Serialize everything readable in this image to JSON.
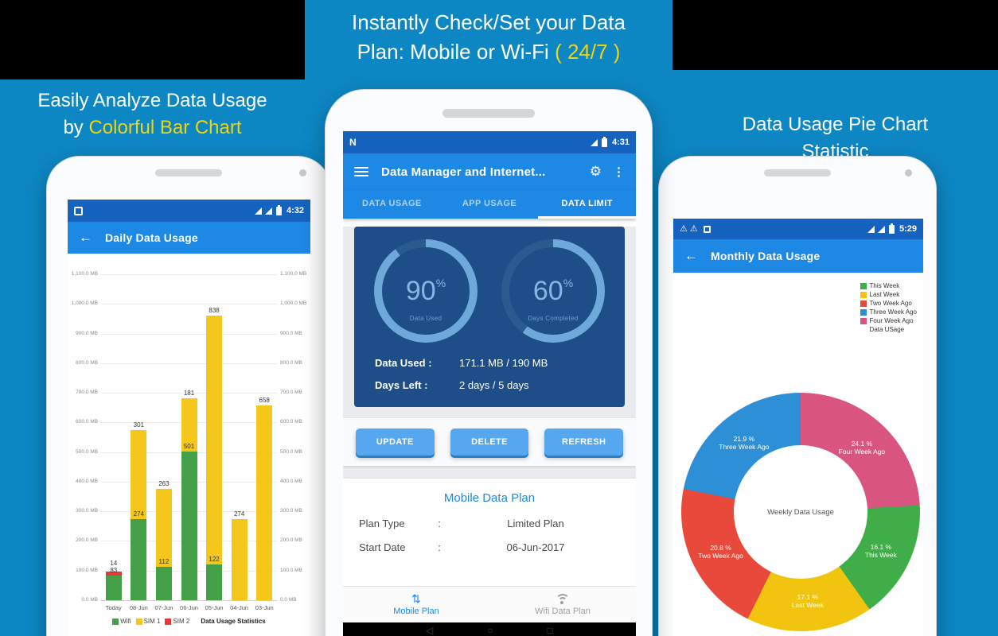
{
  "theme": {
    "background": "#0d87c4",
    "highlight_yellow": "#efd411",
    "appbar_blue": "#1e88e5",
    "statusbar_blue": "#1563bf",
    "card_blue": "#1d4e87",
    "button_blue": "#55a7f0"
  },
  "icons": {
    "back": "←",
    "gear": "⚙",
    "more": "⋮",
    "swap": "⇅",
    "warning": "⚠",
    "nav_back": "◁",
    "nav_home": "○",
    "nav_recent": "□"
  },
  "header": {
    "center_line1": "Instantly Check/Set your Data",
    "center_line2_prefix": "Plan: Mobile or Wi-Fi ",
    "center_line2_highlight": "( 24/7 )",
    "left_line1": "Easily Analyze Data Usage",
    "left_line2_prefix": "by ",
    "left_line2_highlight": "Colorful Bar Chart",
    "right_line1": "Data Usage Pie Chart",
    "right_line2": "Statistic"
  },
  "left_phone": {
    "status_time": "4:32",
    "appbar_title": "Daily Data Usage"
  },
  "middle_phone": {
    "status_icon": "N",
    "status_time": "4:31",
    "appbar_title": "Data Manager and Internet...",
    "tabs": [
      {
        "label": "DATA USAGE",
        "active": false
      },
      {
        "label": "APP USAGE",
        "active": false
      },
      {
        "label": "DATA LIMIT",
        "active": true
      }
    ],
    "stats": [
      {
        "label": "Data Used :",
        "value": "171.1 MB / 190 MB"
      },
      {
        "label": "Days Left :",
        "value": "2 days / 5 days"
      }
    ],
    "buttons": [
      "UPDATE",
      "DELETE",
      "REFRESH"
    ],
    "plan_card": {
      "title": "Mobile Data Plan",
      "colon": ":",
      "rows": [
        {
          "label": "Plan Type",
          "value": "Limited Plan"
        },
        {
          "label": "Start Date",
          "value": "06-Jun-2017"
        }
      ]
    },
    "bottom_nav": [
      {
        "label": "Mobile Plan",
        "icon": "swap",
        "active": true
      },
      {
        "label": "Wifi Data Plan",
        "icon": "wifi",
        "active": false
      }
    ]
  },
  "right_phone": {
    "status_time": "5:29",
    "appbar_title": "Monthly Data Usage"
  },
  "chart_data": [
    {
      "id": "daily-bar",
      "type": "bar",
      "stacked": true,
      "title": "Daily Data Usage",
      "footer": "Data Usage Statistics",
      "categories": [
        "Today",
        "08-Jun",
        "07-Jun",
        "06-Jun",
        "05-Jun",
        "04-Jun",
        "03-Jun"
      ],
      "series": [
        {
          "name": "Wifi",
          "color": "#43a047",
          "values": [
            83,
            274,
            112,
            501,
            122,
            0,
            0
          ]
        },
        {
          "name": "SIM 1",
          "color": "#f5c71a",
          "values": [
            0,
            301,
            263,
            181,
            838,
            274,
            658
          ]
        },
        {
          "name": "SIM 2",
          "color": "#e53935",
          "values": [
            14,
            0,
            0,
            0,
            0,
            0,
            0
          ]
        }
      ],
      "ymax": 1100,
      "ylabel_unit": "MB",
      "y_ticks": [
        "0.0 MB",
        "100.0 MB",
        "200.0 MB",
        "300.0 MB",
        "400.0 MB",
        "500.0 MB",
        "600.0 MB",
        "700.0 MB",
        "800.0 MB",
        "900.0 MB",
        "1,000.0 MB",
        "1,100.0 MB"
      ]
    },
    {
      "id": "data-used-gauge",
      "type": "donut",
      "value": 90,
      "suffix": "%",
      "label": "Data Used"
    },
    {
      "id": "days-completed-gauge",
      "type": "donut",
      "value": 60,
      "suffix": "%",
      "label": "Days Completed"
    },
    {
      "id": "weekly-pie",
      "type": "pie",
      "center_label": "Weekly Data Usage",
      "legend_note": "Data USage",
      "slices": [
        {
          "label": "Four Week Ago",
          "pct": 24.1,
          "color": "#da5480"
        },
        {
          "label": "This Week",
          "pct": 16.1,
          "color": "#3fae49"
        },
        {
          "label": "Last Week",
          "pct": 17.1,
          "color": "#f1c40f"
        },
        {
          "label": "Two Week Ago",
          "pct": 20.8,
          "color": "#e8493a"
        },
        {
          "label": "Three Week Ago",
          "pct": 21.9,
          "color": "#2d8fd5"
        }
      ],
      "legend_order": [
        "This Week",
        "Last Week",
        "Two Week Ago",
        "Three Week Ago",
        "Four Week Ago"
      ]
    }
  ]
}
